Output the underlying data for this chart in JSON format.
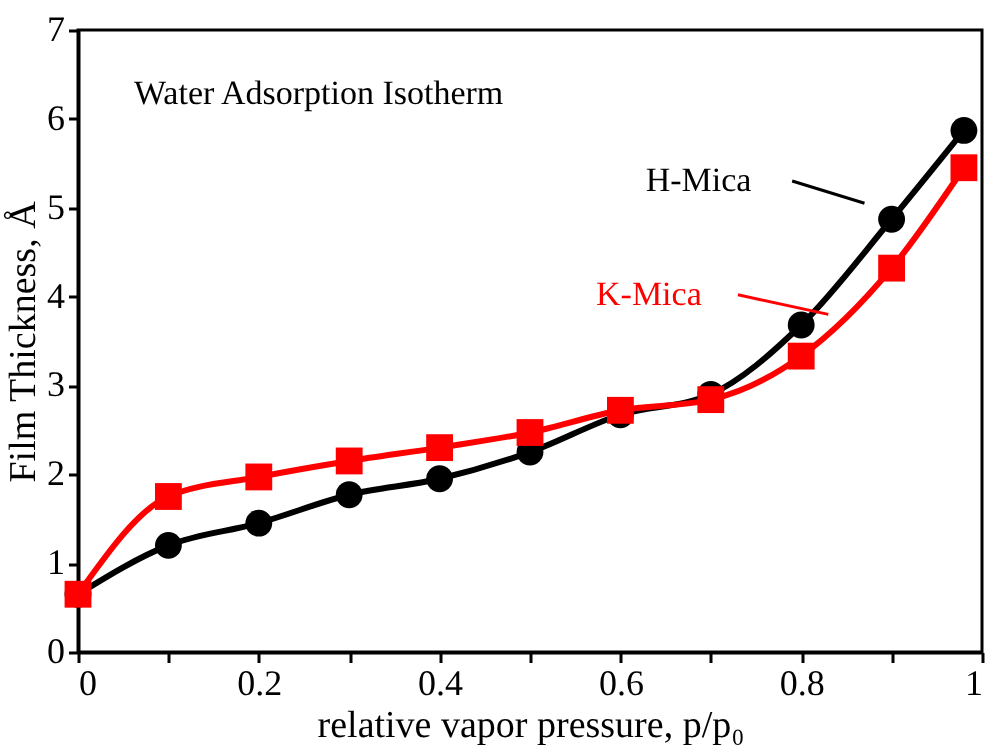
{
  "chart_data": {
    "type": "line",
    "xlabel": "relative vapor pressure, p/p₀",
    "ylabel": "Film Thickness, Å",
    "annotations": [
      "Water Adsorption Isotherm"
    ],
    "x": [
      0,
      0.1,
      0.2,
      0.3,
      0.4,
      0.5,
      0.6,
      0.7,
      0.8,
      0.9,
      0.98
    ],
    "series": [
      {
        "name": "H-Mica",
        "color": "#000000",
        "marker": "circle",
        "values": [
          0.65,
          1.2,
          1.45,
          1.77,
          1.95,
          2.25,
          2.67,
          2.9,
          3.68,
          4.87,
          5.87
        ]
      },
      {
        "name": "K-Mica",
        "color": "#ff0000",
        "marker": "square",
        "values": [
          0.65,
          1.75,
          1.97,
          2.15,
          2.3,
          2.47,
          2.72,
          2.84,
          3.33,
          4.32,
          5.45
        ]
      }
    ],
    "xlim": [
      0,
      1
    ],
    "xticks": [
      0,
      {
        "value": 0.1,
        "label": null
      },
      0.2,
      {
        "value": 0.3,
        "label": null
      },
      0.4,
      {
        "value": 0.5,
        "label": null
      },
      0.6,
      {
        "value": 0.7,
        "label": null
      },
      0.8,
      {
        "value": 0.9,
        "label": null
      },
      1
    ],
    "ylim": [
      0,
      7
    ],
    "yticks": [
      0,
      1,
      2,
      3,
      4,
      5,
      6,
      7
    ],
    "grid": false,
    "legend": "top right",
    "line_style": "solid"
  }
}
